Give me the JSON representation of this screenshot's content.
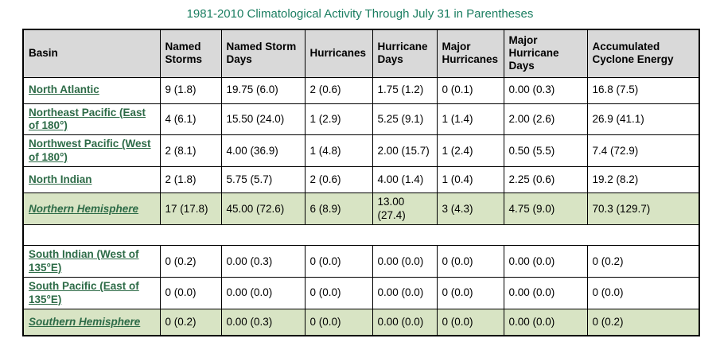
{
  "page": {
    "title": "1981-2010 Climatological Activity Through July 31 in Parentheses"
  },
  "colors": {
    "title_text": "#1b7e61",
    "basin_link_green": "#2d6b47",
    "header_row_bg": "#d9d9d9",
    "hemisphere_row_bg": "#d8e4c4",
    "table_border": "#000000"
  },
  "table": {
    "columns": [
      "Basin",
      "Named Storms",
      "Named Storm Days",
      "Hurricanes",
      "Hurricane Days",
      "Major Hurricanes",
      "Major Hurricane Days",
      "Accumulated Cyclone Energy"
    ],
    "rows": [
      {
        "type": "basin",
        "basin": "North Atlantic",
        "values": [
          "9 (1.8)",
          "19.75 (6.0)",
          "2 (0.6)",
          "1.75 (1.2)",
          "0 (0.1)",
          "0.00 (0.3)",
          "16.8 (7.5)"
        ]
      },
      {
        "type": "basin",
        "basin": "Northeast Pacific (East of 180°)",
        "values": [
          "4 (6.1)",
          "15.50 (24.0)",
          "1 (2.9)",
          "5.25 (9.1)",
          "1 (1.4)",
          "2.00 (2.6)",
          "26.9 (41.1)"
        ]
      },
      {
        "type": "basin",
        "basin": "Northwest Pacific (West of 180°)",
        "values": [
          "2 (8.1)",
          "4.00 (36.9)",
          "1 (4.8)",
          "2.00 (15.7)",
          "1 (2.4)",
          "0.50 (5.5)",
          "7.4 (72.9)"
        ]
      },
      {
        "type": "basin",
        "basin": "North Indian",
        "values": [
          "2 (1.8)",
          "5.75 (5.7)",
          "2 (0.6)",
          "4.00 (1.4)",
          "1 (0.4)",
          "2.25 (0.6)",
          "19.2 (8.2)"
        ]
      },
      {
        "type": "hemisphere",
        "basin": "Northern Hemisphere",
        "values": [
          "17 (17.8)",
          "45.00 (72.6)",
          "6 (8.9)",
          "13.00 (27.4)",
          "3 (4.3)",
          "4.75 (9.0)",
          "70.3 (129.7)"
        ]
      },
      {
        "type": "spacer"
      },
      {
        "type": "basin",
        "basin": "South Indian (West of 135°E)",
        "values": [
          "0 (0.2)",
          "0.00 (0.3)",
          "0 (0.0)",
          "0.00 (0.0)",
          "0 (0.0)",
          "0.00 (0.0)",
          "0 (0.2)"
        ]
      },
      {
        "type": "basin",
        "basin": "South Pacific (East of 135°E)",
        "values": [
          "0 (0.0)",
          "0.00 (0.0)",
          "0 (0.0)",
          "0.00 (0.0)",
          "0 (0.0)",
          "0.00 (0.0)",
          "0 (0.0)"
        ]
      },
      {
        "type": "hemisphere",
        "basin": "Southern Hemisphere",
        "values": [
          "0 (0.2)",
          "0.00 (0.3)",
          "0 (0.0)",
          "0.00 (0.0)",
          "0 (0.0)",
          "0.00 (0.0)",
          "0 (0.2)"
        ]
      }
    ]
  }
}
